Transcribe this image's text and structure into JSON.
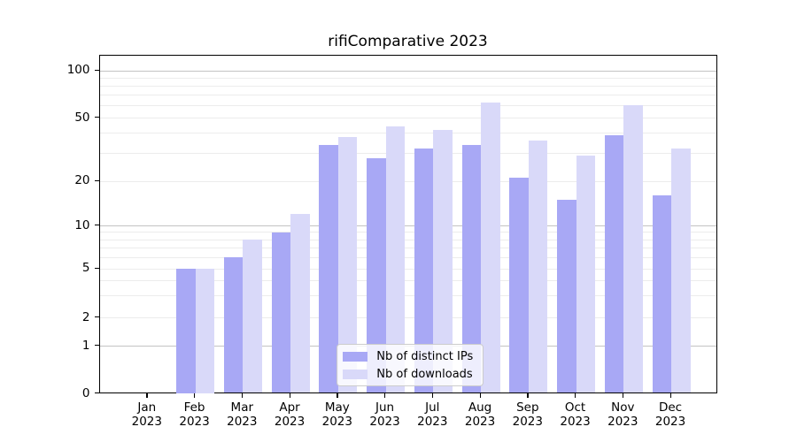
{
  "chart_data": {
    "type": "bar",
    "title": "rifiComparative 2023",
    "categories": [
      "Jan",
      "Feb",
      "Mar",
      "Apr",
      "May",
      "Jun",
      "Jul",
      "Aug",
      "Sep",
      "Oct",
      "Nov",
      "Dec"
    ],
    "year_label": "2023",
    "series": [
      {
        "name": "Nb of distinct IPs",
        "color": "#a8a8f5",
        "values": [
          0,
          5,
          6,
          9,
          34,
          28,
          32,
          34,
          21,
          15,
          39,
          16
        ]
      },
      {
        "name": "Nb of downloads",
        "color": "#d9d9f9",
        "values": [
          0,
          5,
          8,
          12,
          38,
          44,
          42,
          63,
          36,
          29,
          60,
          32
        ]
      }
    ],
    "yaxis": {
      "scale": "log-like (0,1 then log)",
      "tick_labels": [
        "100",
        "50",
        "20",
        "10",
        "5",
        "2",
        "1",
        "0"
      ],
      "tick_values": [
        100,
        50,
        20,
        10,
        5,
        2,
        1,
        0
      ],
      "ylim": [
        0,
        125
      ],
      "grid": true
    },
    "xlabel": "",
    "ylabel": "",
    "legend": {
      "position": "lower center inside",
      "entries": [
        "Nb of distinct IPs",
        "Nb of downloads"
      ]
    }
  }
}
